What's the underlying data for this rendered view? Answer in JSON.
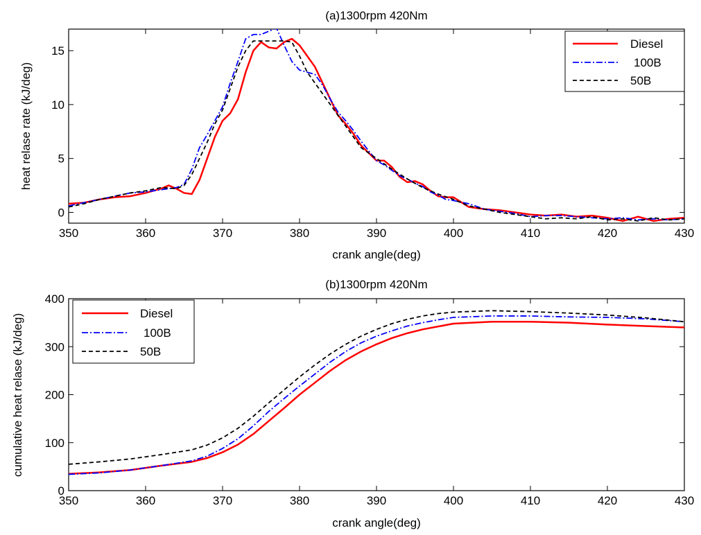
{
  "chart_data": [
    {
      "type": "line",
      "title": "(a)1300rpm 420Nm",
      "xlabel": "crank angle(deg)",
      "ylabel": "heat relase rate (kJ/deg)",
      "xlim": [
        350,
        430
      ],
      "ylim": [
        -1,
        17
      ],
      "xticks": [
        350,
        360,
        370,
        380,
        390,
        400,
        410,
        420,
        430
      ],
      "yticks": [
        0,
        5,
        10,
        15
      ],
      "grid": false,
      "legend_position": "top-right",
      "series": [
        {
          "name": "Diesel",
          "color": "#ff0000",
          "dash": "solid",
          "x": [
            350,
            352,
            354,
            356,
            358,
            360,
            362,
            363,
            364,
            365,
            366,
            367,
            368,
            369,
            370,
            371,
            372,
            373,
            374,
            375,
            376,
            377,
            378,
            379,
            380,
            381,
            382,
            383,
            384,
            385,
            386,
            387,
            388,
            389,
            390,
            391,
            392,
            393,
            394,
            395,
            396,
            397,
            398,
            399,
            400,
            402,
            404,
            406,
            408,
            410,
            412,
            414,
            416,
            418,
            420,
            422,
            424,
            426,
            428,
            430
          ],
          "y": [
            0.8,
            0.9,
            1.2,
            1.4,
            1.5,
            1.8,
            2.2,
            2.5,
            2.2,
            1.8,
            1.7,
            3,
            5,
            7,
            8.5,
            9.2,
            10.5,
            13,
            15,
            15.8,
            15.3,
            15.2,
            15.8,
            16.1,
            15.5,
            14.5,
            13.5,
            12,
            10.5,
            9,
            8.2,
            7.3,
            6.2,
            5.5,
            4.8,
            4.8,
            4.2,
            3.3,
            2.8,
            2.9,
            2.6,
            2,
            1.5,
            1.4,
            1.4,
            0.5,
            0.3,
            0.2,
            0,
            -0.2,
            -0.3,
            -0.2,
            -0.4,
            -0.3,
            -0.5,
            -0.8,
            -0.4,
            -0.8,
            -0.6,
            -0.5
          ]
        },
        {
          "name": "100B",
          "color": "#0000ff",
          "dash": "dashdot",
          "x": [
            350,
            352,
            354,
            356,
            358,
            360,
            362,
            364,
            365,
            366,
            367,
            368,
            369,
            370,
            371,
            372,
            373,
            374,
            375,
            376,
            377,
            378,
            379,
            380,
            381,
            382,
            383,
            384,
            385,
            386,
            387,
            388,
            389,
            390,
            391,
            392,
            393,
            394,
            395,
            396,
            397,
            398,
            399,
            400,
            402,
            404,
            406,
            408,
            410,
            412,
            414,
            416,
            418,
            420,
            422,
            424,
            426,
            428,
            430
          ],
          "y": [
            0.6,
            0.9,
            1.2,
            1.5,
            1.8,
            1.9,
            2.1,
            2.3,
            2.6,
            4,
            6,
            7.2,
            8.5,
            9.8,
            12,
            14,
            16.1,
            16.5,
            16.5,
            16.8,
            17.1,
            15.5,
            14,
            13.2,
            13,
            12.8,
            11.8,
            10.5,
            9.3,
            8.5,
            7.6,
            6.6,
            5.7,
            4.8,
            4.4,
            3.9,
            3.4,
            3.1,
            2.7,
            2.4,
            1.9,
            1.6,
            1.2,
            1.1,
            0.8,
            0.3,
            0.1,
            -0.1,
            -0.4,
            -0.3,
            -0.3,
            -0.4,
            -0.5,
            -0.6,
            -0.5,
            -0.7,
            -0.6,
            -0.7,
            -0.6
          ]
        },
        {
          "name": "50B",
          "color": "#000000",
          "dash": "dashed",
          "x": [
            350,
            352,
            354,
            356,
            358,
            360,
            362,
            364,
            365,
            366,
            367,
            368,
            369,
            370,
            371,
            372,
            373,
            374,
            375,
            376,
            377,
            378,
            379,
            380,
            381,
            382,
            383,
            384,
            385,
            386,
            387,
            388,
            389,
            390,
            392,
            394,
            396,
            398,
            400,
            402,
            404,
            406,
            408,
            410,
            412,
            414,
            416,
            418,
            420,
            422,
            424,
            426,
            428,
            430
          ],
          "y": [
            0.5,
            0.8,
            1.2,
            1.5,
            1.8,
            2,
            2.3,
            2.2,
            2.5,
            3.5,
            5,
            6.5,
            8.2,
            9.5,
            11.5,
            13.5,
            15,
            15.9,
            15.9,
            15.9,
            15.9,
            15.9,
            15.8,
            14.5,
            13,
            12,
            11,
            10,
            9,
            8,
            7,
            6,
            5.5,
            5,
            4,
            3.1,
            2.3,
            1.7,
            1.2,
            0.6,
            0.3,
            0,
            -0.2,
            -0.4,
            -0.6,
            -0.5,
            -0.6,
            -0.4,
            -0.7,
            -0.6,
            -0.8,
            -0.5,
            -0.7,
            -0.6
          ]
        }
      ]
    },
    {
      "type": "line",
      "title": "(b)1300rpm 420Nm",
      "xlabel": "crank angle(deg)",
      "ylabel": "cumulative heat relase (kJ/deg)",
      "xlim": [
        350,
        430
      ],
      "ylim": [
        0,
        400
      ],
      "xticks": [
        350,
        360,
        370,
        380,
        390,
        400,
        410,
        420,
        430
      ],
      "yticks": [
        0,
        100,
        200,
        300,
        400
      ],
      "grid": false,
      "legend_position": "top-left",
      "series": [
        {
          "name": "Diesel",
          "color": "#ff0000",
          "dash": "solid",
          "x": [
            350,
            354,
            358,
            362,
            366,
            368,
            370,
            372,
            374,
            376,
            378,
            380,
            382,
            384,
            386,
            388,
            390,
            392,
            394,
            396,
            398,
            400,
            405,
            410,
            415,
            420,
            425,
            430
          ],
          "y": [
            35,
            38,
            43,
            52,
            60,
            68,
            80,
            96,
            118,
            145,
            172,
            200,
            225,
            250,
            272,
            290,
            305,
            318,
            328,
            336,
            342,
            348,
            352,
            352,
            350,
            346,
            343,
            340
          ]
        },
        {
          "name": "100B",
          "color": "#0000ff",
          "dash": "dashdot",
          "x": [
            350,
            354,
            358,
            362,
            366,
            368,
            370,
            372,
            374,
            376,
            378,
            380,
            382,
            384,
            386,
            388,
            390,
            392,
            394,
            396,
            398,
            400,
            405,
            410,
            415,
            420,
            425,
            430
          ],
          "y": [
            34,
            37,
            43,
            52,
            62,
            72,
            88,
            108,
            135,
            165,
            192,
            218,
            243,
            268,
            290,
            308,
            322,
            333,
            343,
            350,
            356,
            361,
            364,
            364,
            362,
            361,
            358,
            352
          ]
        },
        {
          "name": "50B",
          "color": "#000000",
          "dash": "dashed",
          "x": [
            350,
            354,
            358,
            362,
            366,
            368,
            370,
            372,
            374,
            376,
            378,
            380,
            382,
            384,
            386,
            388,
            390,
            392,
            394,
            396,
            398,
            400,
            405,
            410,
            415,
            420,
            425,
            430
          ],
          "y": [
            55,
            60,
            66,
            75,
            85,
            95,
            110,
            130,
            155,
            183,
            210,
            237,
            262,
            285,
            305,
            322,
            336,
            348,
            357,
            364,
            369,
            372,
            375,
            373,
            370,
            366,
            360,
            352
          ]
        }
      ]
    }
  ]
}
